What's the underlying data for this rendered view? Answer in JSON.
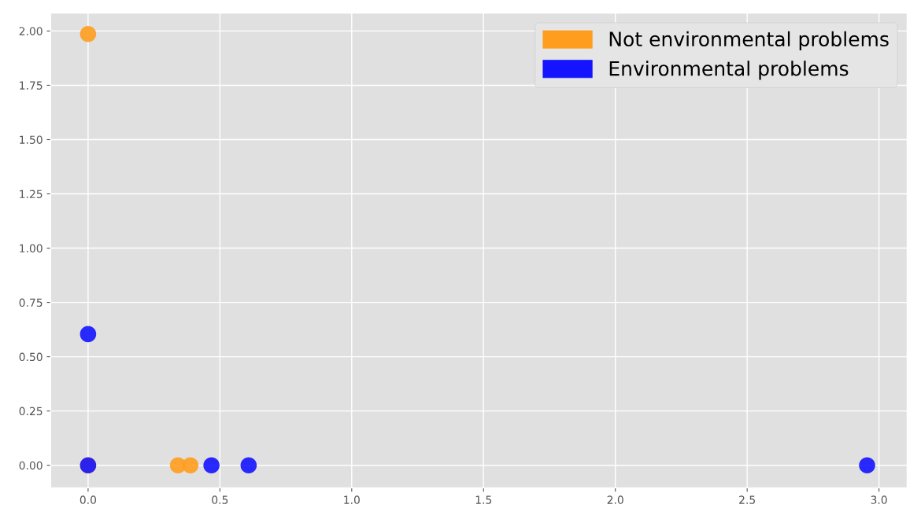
{
  "chart_data": {
    "type": "scatter",
    "marker": "circle",
    "grid": true,
    "legend": "top right",
    "xlim": [
      -0.142,
      3.107
    ],
    "ylim": [
      -0.104,
      2.083
    ],
    "xticks": [
      {
        "value": 0,
        "label": "0.0"
      },
      0.5,
      {
        "value": 1,
        "label": "1.0"
      },
      1.5,
      {
        "value": 2,
        "label": "2.0"
      },
      2.5,
      {
        "value": 3,
        "label": "3.0"
      }
    ],
    "yticks": [
      {
        "value": 0,
        "label": "0.00"
      },
      {
        "value": 0.25,
        "label": "0.25"
      },
      {
        "value": 0.5,
        "label": "0.50"
      },
      {
        "value": 0.75,
        "label": "0.75"
      },
      {
        "value": 1,
        "label": "1.00"
      },
      {
        "value": 1.25,
        "label": "1.25"
      },
      {
        "value": 1.5,
        "label": "1.50"
      },
      {
        "value": 1.75,
        "label": "1.75"
      },
      {
        "value": 2,
        "label": "2.00"
      }
    ],
    "series": [
      {
        "name": "Not environmental problems",
        "color": "#ff9d1f",
        "x": [
          0,
          0,
          0.341,
          0.388
        ],
        "values": [
          1.986,
          0,
          0,
          0
        ]
      },
      {
        "name": "Environmental problems",
        "color": "#1414ff",
        "x": [
          0,
          0,
          0.468,
          0.609,
          2.955
        ],
        "values": [
          0.604,
          0,
          0,
          0,
          0
        ]
      }
    ]
  }
}
